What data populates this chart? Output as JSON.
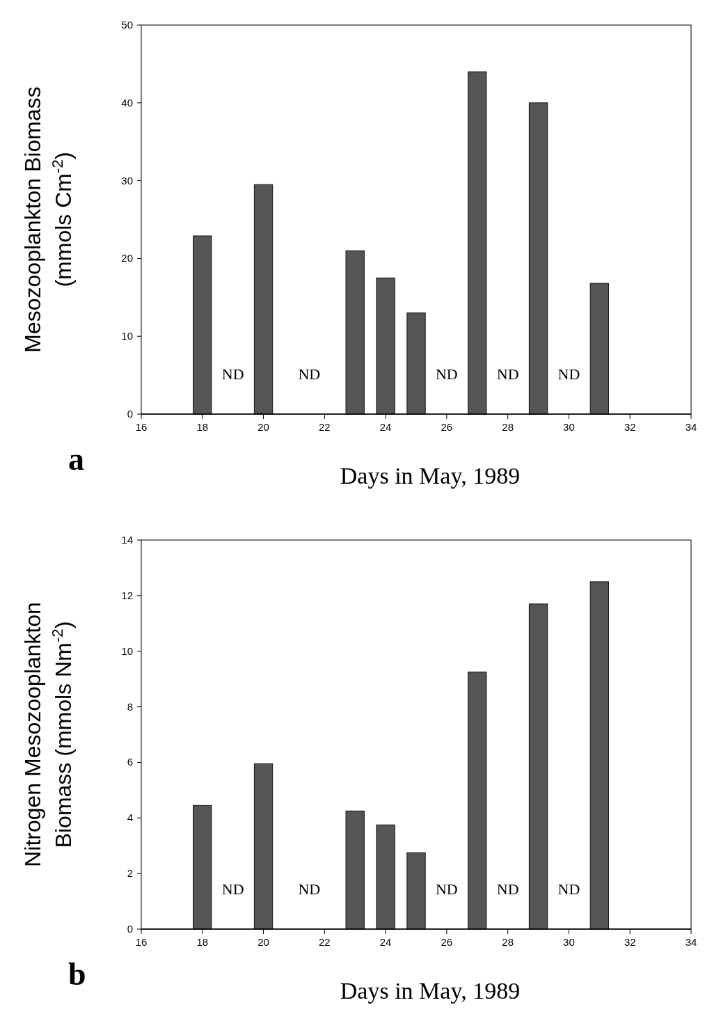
{
  "chart_data": [
    {
      "type": "bar",
      "x": [
        18,
        20,
        23,
        24,
        25,
        27,
        29,
        31
      ],
      "values": [
        22.9,
        29.5,
        21,
        17.5,
        13,
        44,
        40,
        16.8
      ],
      "color": "#555555",
      "xlim": [
        16,
        34
      ],
      "xticks": [
        16,
        18,
        20,
        22,
        24,
        26,
        28,
        30,
        32,
        34
      ],
      "ylim": [
        0,
        50
      ],
      "yticks": [
        0,
        10,
        20,
        30,
        40,
        50
      ],
      "xlabel": "Days in May, 1989",
      "ylabel": "Mesozooplankton Biomass\n(mmols Cm$^{-2}$)",
      "grid": false,
      "annotations": [
        "ND",
        "ND",
        "ND",
        "ND",
        "ND",
        "a"
      ]
    },
    {
      "type": "bar",
      "x": [
        18,
        20,
        23,
        24,
        25,
        27,
        29,
        31
      ],
      "values": [
        4.45,
        5.95,
        4.25,
        3.75,
        2.75,
        9.25,
        11.7,
        12.5
      ],
      "color": "#555555",
      "xlim": [
        16,
        34
      ],
      "xticks": [
        16,
        18,
        20,
        22,
        24,
        26,
        28,
        30,
        32,
        34
      ],
      "ylim": [
        0,
        14
      ],
      "yticks": [
        0,
        2,
        4,
        6,
        8,
        10,
        12,
        14
      ],
      "xlabel": "Days in May, 1989",
      "ylabel": "Nitrogen Mesozooplankton\nBiomass (mmols Nm$^{-2}$)",
      "grid": false,
      "annotations": [
        "ND",
        "ND",
        "ND",
        "ND",
        "ND",
        "b"
      ]
    }
  ]
}
